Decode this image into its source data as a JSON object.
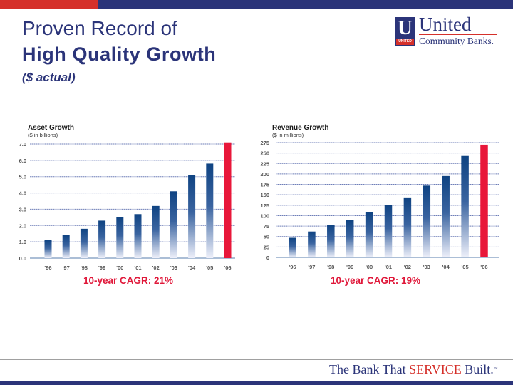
{
  "header": {
    "title_line1": "Proven Record of",
    "title_line2": "High Quality Growth",
    "title_line3": "($ actual)"
  },
  "logo": {
    "letter": "U",
    "tag": "UNITED",
    "name": "United",
    "subname": "Community Banks."
  },
  "colors": {
    "navy": "#2b3479",
    "red": "#d5302a",
    "bar_navy": "#0f4382",
    "bar_red": "#e8173a",
    "cagr_red": "#e0183a"
  },
  "chart_data": [
    {
      "type": "bar",
      "title": "Asset Growth",
      "subtitle": "($ in billions)",
      "categories": [
        "'96",
        "'97",
        "'98",
        "'99",
        "'00",
        "'01",
        "'02",
        "'03",
        "'04",
        "'05",
        "'06"
      ],
      "values": [
        1.1,
        1.4,
        1.8,
        2.3,
        2.5,
        2.7,
        3.2,
        4.1,
        5.1,
        5.8,
        7.1
      ],
      "yticks": [
        "0.0",
        "1.0",
        "2.0",
        "3.0",
        "4.0",
        "5.0",
        "6.0",
        "7.0"
      ],
      "ylim": [
        0,
        7
      ],
      "grid": true,
      "highlight_last": true,
      "annotation": "10-year CAGR: 21%"
    },
    {
      "type": "bar",
      "title": "Revenue Growth",
      "subtitle": "($ in millions)",
      "categories": [
        "'96",
        "'97",
        "'98",
        "'99",
        "'00",
        "'01",
        "'02",
        "'03",
        "'04",
        "'05",
        "'06"
      ],
      "values": [
        47,
        62,
        78,
        89,
        108,
        126,
        142,
        172,
        195,
        243,
        270
      ],
      "yticks": [
        "0",
        "25",
        "50",
        "75",
        "100",
        "125",
        "150",
        "175",
        "200",
        "225",
        "250",
        "275"
      ],
      "ylim": [
        0,
        275
      ],
      "grid": true,
      "highlight_last": true,
      "annotation": "10-year CAGR: 19%"
    }
  ],
  "footer": {
    "tagline_pre": "The Bank That ",
    "tagline_service": "SERVICE",
    "tagline_post": " Built.",
    "tagline_tm": "™"
  }
}
